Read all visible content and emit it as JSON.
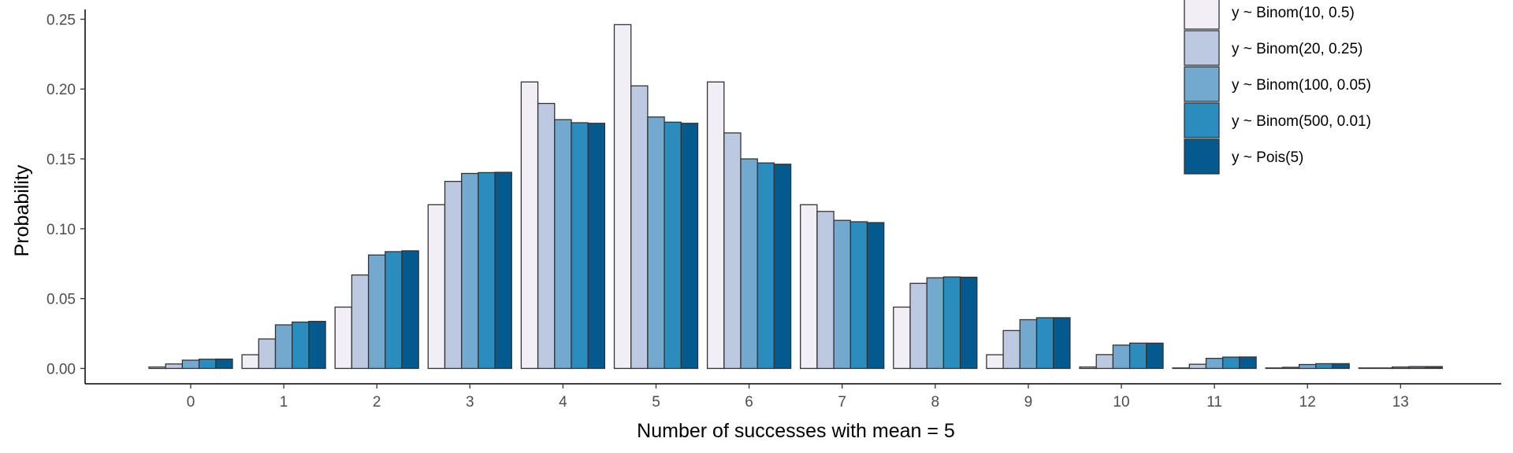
{
  "chart_data": {
    "type": "bar",
    "xlabel": "Number of successes with mean = 5",
    "ylabel": "Probability",
    "categories": [
      "0",
      "1",
      "2",
      "3",
      "4",
      "5",
      "6",
      "7",
      "8",
      "9",
      "10",
      "11",
      "12",
      "13"
    ],
    "ylim": [
      -0.011,
      0.257
    ],
    "yticks": [
      0.0,
      0.05,
      0.1,
      0.15,
      0.2,
      0.25
    ],
    "ytick_labels": [
      "0.00",
      "0.05",
      "0.10",
      "0.15",
      "0.20",
      "0.25"
    ],
    "grid": false,
    "legend_position": "top-right",
    "series": [
      {
        "name": "y ~ Binom(10, 0.5)",
        "color": "#F1EEF6",
        "values": [
          0.001,
          0.0098,
          0.0439,
          0.1172,
          0.2051,
          0.2461,
          0.2051,
          0.1172,
          0.0439,
          0.0098,
          0.001,
          0,
          0,
          0
        ]
      },
      {
        "name": "y ~ Binom(20, 0.25)",
        "color": "#BDC9E1",
        "values": [
          0.0032,
          0.0211,
          0.0669,
          0.1339,
          0.1897,
          0.2023,
          0.1686,
          0.1124,
          0.0609,
          0.0271,
          0.0099,
          0.003,
          0.0008,
          0.0002
        ]
      },
      {
        "name": "y ~ Binom(100, 0.05)",
        "color": "#74A9CF",
        "values": [
          0.0059,
          0.0312,
          0.0812,
          0.1396,
          0.1781,
          0.18,
          0.15,
          0.106,
          0.0649,
          0.0349,
          0.0167,
          0.0072,
          0.0028,
          0.001
        ]
      },
      {
        "name": "y ~ Binom(500, 0.01)",
        "color": "#2B8CBE",
        "values": [
          0.0066,
          0.0332,
          0.0836,
          0.1402,
          0.1759,
          0.1763,
          0.1471,
          0.105,
          0.0655,
          0.0363,
          0.0181,
          0.0081,
          0.0034,
          0.0013
        ]
      },
      {
        "name": "y ~ Pois(5)",
        "color": "#045A8D",
        "values": [
          0.0067,
          0.0337,
          0.0842,
          0.1404,
          0.1755,
          0.1755,
          0.1462,
          0.1044,
          0.0653,
          0.0363,
          0.0181,
          0.0082,
          0.0034,
          0.0013
        ]
      }
    ]
  }
}
